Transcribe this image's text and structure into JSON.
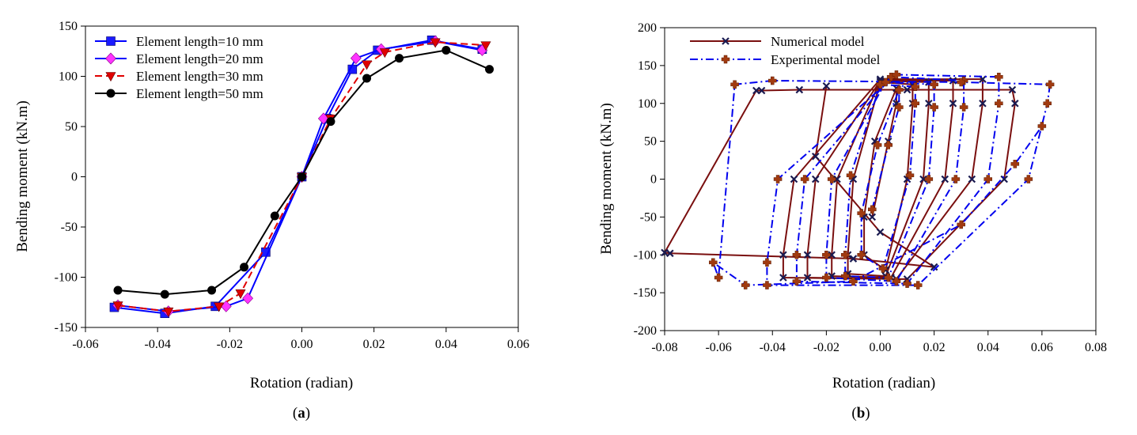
{
  "chart_data": [
    {
      "type": "line",
      "panel_label": [
        "(",
        "a",
        ")"
      ],
      "title": "",
      "xlabel": "Rotation (radian)",
      "ylabel": "Bending moment (kN.m)",
      "xlim": [
        -0.06,
        0.06
      ],
      "ylim": [
        -150,
        150
      ],
      "xticks": [
        -0.06,
        -0.04,
        -0.02,
        0.0,
        0.02,
        0.04,
        0.06
      ],
      "xtick_labels": [
        "-0.06",
        "-0.04",
        "-0.02",
        "0.00",
        "0.02",
        "0.04",
        "0.06"
      ],
      "yticks": [
        -150,
        -100,
        -50,
        0,
        50,
        100,
        150
      ],
      "ytick_labels": [
        "-150",
        "-100",
        "-50",
        "0",
        "50",
        "100",
        "150"
      ],
      "grid": false,
      "legend_position": "top-left",
      "series": [
        {
          "name": "Element length=10 mm",
          "color": "#0000ff",
          "marker": "square",
          "marker_color": "#1a1aff",
          "dash": "",
          "x": [
            -0.052,
            -0.038,
            -0.024,
            -0.01,
            0.0,
            0.007,
            0.014,
            0.021,
            0.036,
            0.05
          ],
          "y": [
            -130,
            -136,
            -129,
            -75,
            0,
            58,
            107,
            126,
            136,
            127
          ]
        },
        {
          "name": "Element length=20 mm",
          "color": "#0000ff",
          "marker": "diamond",
          "marker_color": "#ff33ff",
          "dash": "",
          "x": [
            -0.051,
            -0.037,
            -0.021,
            -0.015,
            0.0,
            0.006,
            0.015,
            0.022,
            0.037,
            0.05
          ],
          "y": [
            -128,
            -134,
            -129,
            -121,
            0,
            58,
            118,
            127,
            135,
            126
          ]
        },
        {
          "name": "Element length=30 mm",
          "color": "#e00000",
          "marker": "triangle-down",
          "marker_color": "#e00000",
          "dash": "9,5",
          "x": [
            -0.051,
            -0.037,
            -0.023,
            -0.017,
            0.0,
            0.008,
            0.018,
            0.023,
            0.037,
            0.051
          ],
          "y": [
            -128,
            -134,
            -129,
            -116,
            0,
            58,
            112,
            124,
            134,
            131
          ]
        },
        {
          "name": "Element length=50 mm",
          "color": "#000000",
          "marker": "circle",
          "marker_color": "#000000",
          "dash": "",
          "x": [
            -0.051,
            -0.038,
            -0.025,
            -0.016,
            -0.0075,
            0.0,
            0.008,
            0.018,
            0.027,
            0.04,
            0.052
          ],
          "y": [
            -113,
            -117,
            -113,
            -90,
            -39,
            0,
            55,
            98,
            118,
            126,
            107
          ]
        }
      ]
    },
    {
      "type": "line",
      "panel_label": [
        "(",
        "b",
        ")"
      ],
      "title": "",
      "xlabel": "Rotation (radian)",
      "ylabel": "Bending moment (kN.m)",
      "xlim": [
        -0.08,
        0.08
      ],
      "ylim": [
        -200,
        200
      ],
      "xticks": [
        -0.08,
        -0.06,
        -0.04,
        -0.02,
        0.0,
        0.02,
        0.04,
        0.06,
        0.08
      ],
      "xtick_labels": [
        "-0.08",
        "-0.06",
        "-0.04",
        "-0.02",
        "0.00",
        "0.02",
        "0.04",
        "0.06",
        "0.08"
      ],
      "yticks": [
        -200,
        -150,
        -100,
        -50,
        0,
        50,
        100,
        150,
        200
      ],
      "ytick_labels": [
        "-200",
        "-150",
        "-100",
        "-50",
        "0",
        "50",
        "100",
        "150",
        "200"
      ],
      "grid": false,
      "legend_position": "top-left",
      "series": [
        {
          "name": "Numerical model",
          "color": "#7a0f0f",
          "marker": "x",
          "marker_color": "#1a1a50",
          "dash": "",
          "x": [
            -0.003,
            0.003,
            0.006,
            0.006,
            -0.002,
            -0.006,
            -0.006,
            0.002,
            0.01,
            0.012,
            0.012,
            0.0,
            -0.01,
            -0.012,
            -0.012,
            0.002,
            0.016,
            0.018,
            0.018,
            0.0,
            -0.016,
            -0.018,
            -0.018,
            0.004,
            0.024,
            0.027,
            0.027,
            0.0,
            -0.024,
            -0.027,
            -0.027,
            0.006,
            0.034,
            0.038,
            0.038,
            0.0,
            -0.032,
            -0.036,
            -0.036,
            0.01,
            0.046,
            0.05,
            0.049,
            0.01,
            -0.03,
            -0.044,
            -0.046,
            -0.08,
            -0.078,
            -0.01,
            0.02,
            0.0,
            -0.024,
            -0.02
          ],
          "y": [
            -50,
            50,
            100,
            120,
            50,
            -50,
            -100,
            -120,
            0,
            100,
            125,
            128,
            0,
            -100,
            -125,
            -128,
            0,
            100,
            128,
            130,
            0,
            -100,
            -128,
            -130,
            0,
            100,
            130,
            130,
            0,
            -100,
            -130,
            -132,
            0,
            100,
            132,
            132,
            0,
            -100,
            -130,
            -132,
            0,
            100,
            118,
            118,
            118,
            117,
            117,
            -97,
            -98,
            -105,
            -116,
            -70,
            30,
            123
          ]
        },
        {
          "name": "Experimental model",
          "color": "#0000ee",
          "marker": "gear",
          "marker_color": "#a03a10",
          "dash": "10,4,2,4",
          "x": [
            -0.003,
            0.003,
            0.007,
            0.007,
            -0.001,
            -0.007,
            -0.007,
            0.001,
            0.011,
            0.013,
            0.013,
            0.0,
            -0.011,
            -0.013,
            -0.013,
            0.003,
            0.018,
            0.02,
            0.02,
            0.002,
            -0.018,
            -0.02,
            -0.02,
            0.006,
            0.028,
            0.031,
            0.031,
            0.004,
            -0.028,
            -0.031,
            -0.031,
            0.01,
            0.04,
            0.044,
            0.044,
            0.006,
            -0.038,
            -0.042,
            -0.042,
            0.014,
            0.055,
            0.062,
            0.063,
            0.03,
            -0.04,
            -0.054,
            -0.06,
            -0.062,
            -0.05,
            -0.01,
            0.03,
            0.05,
            0.06
          ],
          "y": [
            -40,
            45,
            95,
            118,
            45,
            -45,
            -100,
            -118,
            5,
            100,
            122,
            125,
            5,
            -100,
            -128,
            -130,
            0,
            95,
            125,
            128,
            0,
            -100,
            -130,
            -135,
            0,
            95,
            130,
            135,
            0,
            -100,
            -135,
            -138,
            0,
            100,
            135,
            138,
            0,
            -110,
            -140,
            -140,
            0,
            100,
            125,
            128,
            130,
            125,
            -130,
            -110,
            -140,
            -135,
            -60,
            20,
            70
          ]
        }
      ]
    }
  ]
}
